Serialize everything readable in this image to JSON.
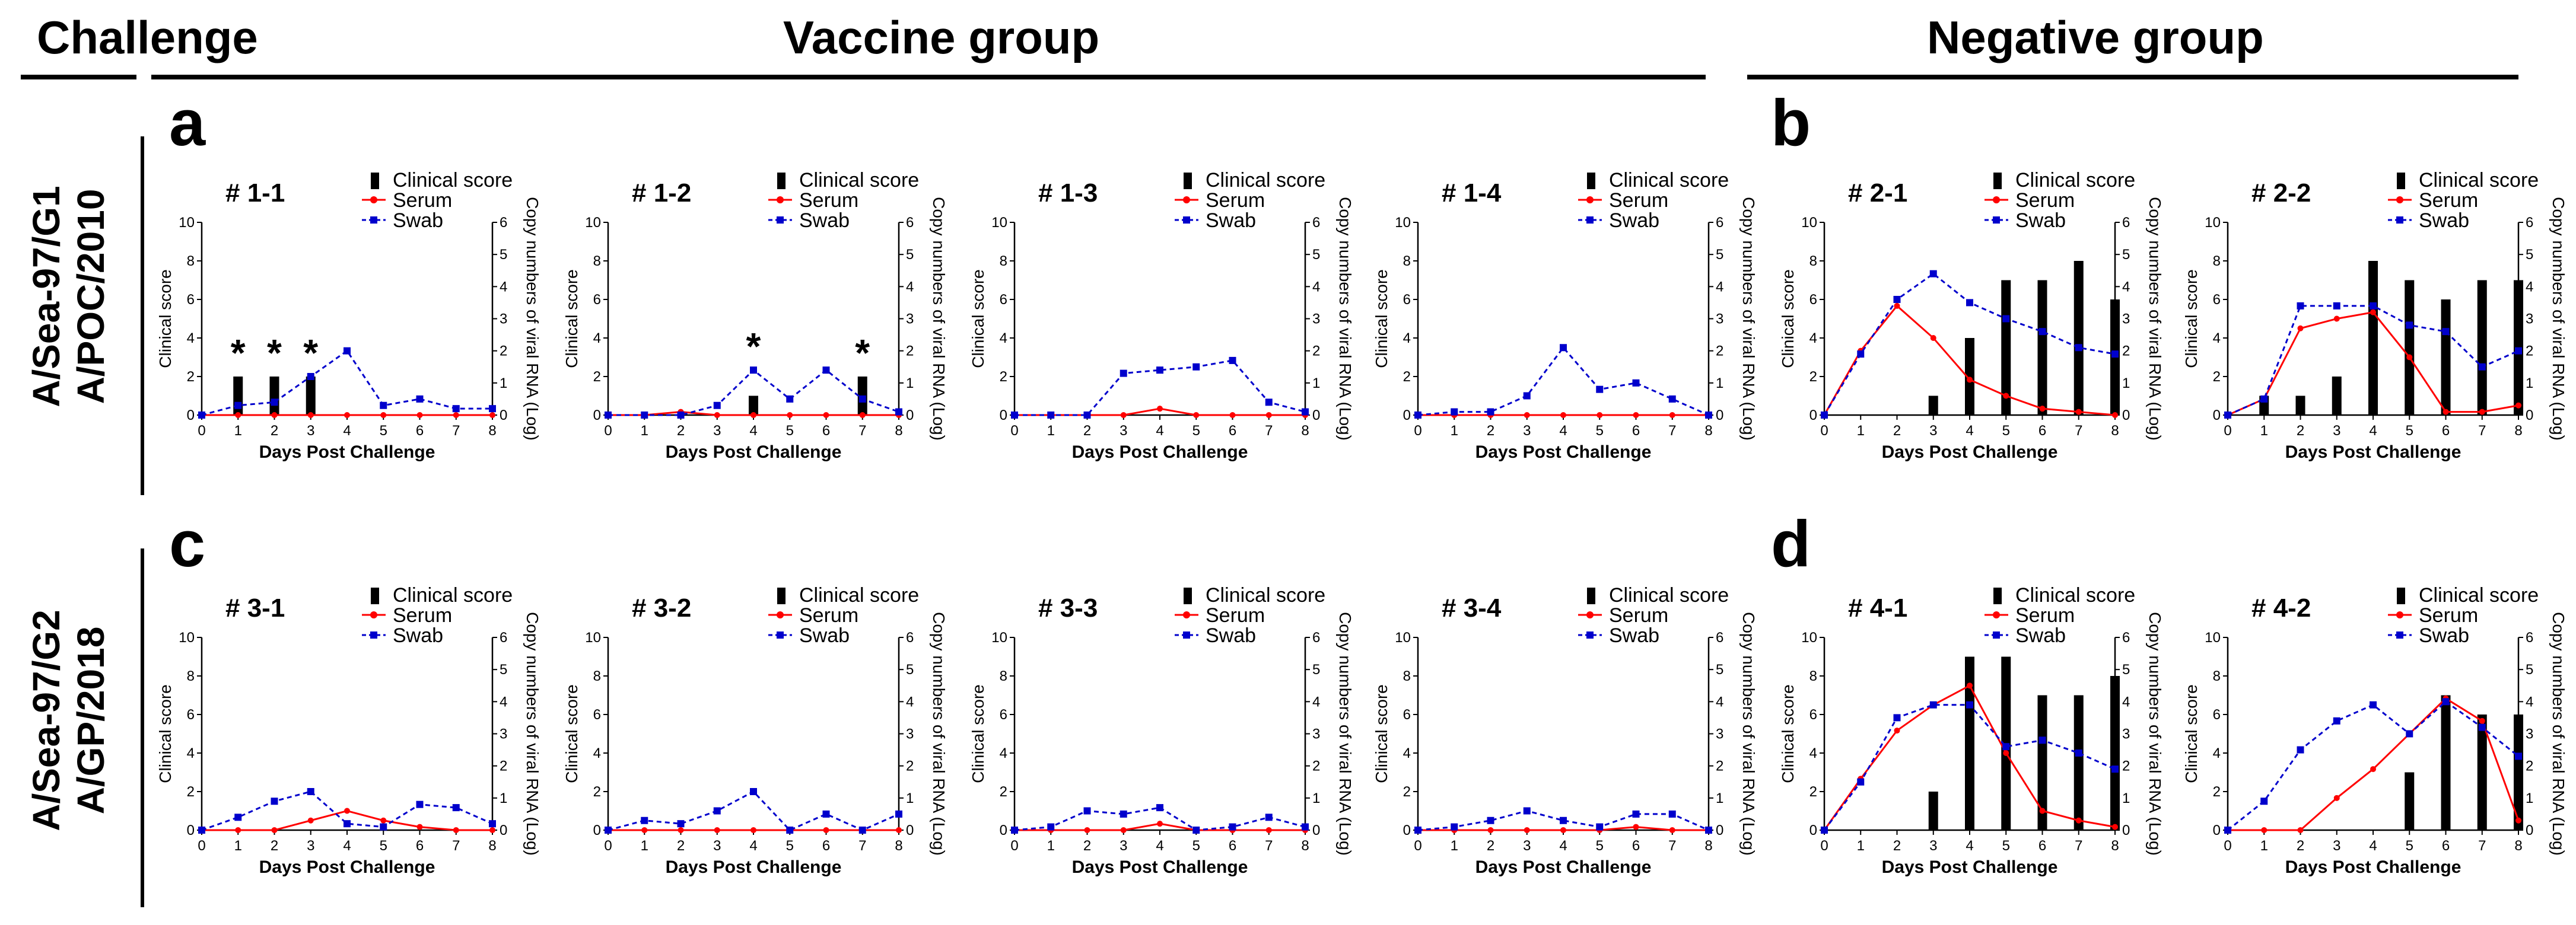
{
  "headers": {
    "challenge": "Challenge",
    "vaccine_group": "Vaccine group",
    "negative_group": "Negative group"
  },
  "row_labels": [
    [
      "A/Sea-97/G1",
      "A/POC/2010"
    ],
    [
      "A/Sea-97/G2",
      "A/GP/2018"
    ]
  ],
  "panel_labels": [
    "a",
    "b",
    "c",
    "d"
  ],
  "legend": {
    "clinical": "Clinical score",
    "serum": "Serum",
    "swab": "Swab"
  },
  "axes": {
    "xlabel": "Days Post Challenge",
    "ylabel_left": "Clinical score",
    "ylabel_right": "Copy numbers of viral RNA (Log)",
    "x_ticks": [
      0,
      1,
      2,
      3,
      4,
      5,
      6,
      7,
      8
    ],
    "left_ylim": [
      0,
      10
    ],
    "right_ylim": [
      0,
      6
    ]
  },
  "colors": {
    "bar": "#000000",
    "serum": "#ff0000",
    "swab": "#0000cc"
  },
  "chart_data": [
    {
      "type": "bar+line",
      "title": "# 1-1",
      "x": [
        0,
        1,
        2,
        3,
        4,
        5,
        6,
        7,
        8
      ],
      "series": [
        {
          "name": "Clinical score",
          "axis": "left",
          "values": [
            0,
            2,
            2,
            2,
            0,
            0,
            0,
            0,
            0
          ]
        },
        {
          "name": "Serum",
          "axis": "right",
          "values": [
            0,
            0,
            0,
            0,
            0,
            0,
            0,
            0,
            0
          ]
        },
        {
          "name": "Swab",
          "axis": "right",
          "values": [
            0,
            0.3,
            0.4,
            1.2,
            2.0,
            0.3,
            0.5,
            0.2,
            0.2
          ]
        }
      ],
      "significance_days": [
        1,
        2,
        3
      ]
    },
    {
      "type": "bar+line",
      "title": "# 1-2",
      "x": [
        0,
        1,
        2,
        3,
        4,
        5,
        6,
        7,
        8
      ],
      "series": [
        {
          "name": "Clinical score",
          "axis": "left",
          "values": [
            0,
            0,
            0,
            0,
            1,
            0,
            0,
            2,
            0
          ]
        },
        {
          "name": "Serum",
          "axis": "right",
          "values": [
            0,
            0,
            0.1,
            0,
            0,
            0,
            0,
            0,
            0
          ]
        },
        {
          "name": "Swab",
          "axis": "right",
          "values": [
            0,
            0,
            0,
            0.3,
            1.4,
            0.5,
            1.4,
            0.5,
            0.1
          ]
        }
      ],
      "significance_days": [
        4,
        7
      ]
    },
    {
      "type": "bar+line",
      "title": "# 1-3",
      "x": [
        0,
        1,
        2,
        3,
        4,
        5,
        6,
        7,
        8
      ],
      "series": [
        {
          "name": "Clinical score",
          "axis": "left",
          "values": [
            0,
            0,
            0,
            0,
            0,
            0,
            0,
            0,
            0
          ]
        },
        {
          "name": "Serum",
          "axis": "right",
          "values": [
            0,
            0,
            0,
            0,
            0.2,
            0,
            0,
            0,
            0
          ]
        },
        {
          "name": "Swab",
          "axis": "right",
          "values": [
            0,
            0,
            0,
            1.3,
            1.4,
            1.5,
            1.7,
            0.4,
            0.1
          ]
        }
      ],
      "significance_days": []
    },
    {
      "type": "bar+line",
      "title": "# 1-4",
      "x": [
        0,
        1,
        2,
        3,
        4,
        5,
        6,
        7,
        8
      ],
      "series": [
        {
          "name": "Clinical score",
          "axis": "left",
          "values": [
            0,
            0,
            0,
            0,
            0,
            0,
            0,
            0,
            0
          ]
        },
        {
          "name": "Serum",
          "axis": "right",
          "values": [
            0,
            0,
            0,
            0,
            0,
            0,
            0,
            0,
            0
          ]
        },
        {
          "name": "Swab",
          "axis": "right",
          "values": [
            0,
            0.1,
            0.1,
            0.6,
            2.1,
            0.8,
            1.0,
            0.5,
            0
          ]
        }
      ],
      "significance_days": []
    },
    {
      "type": "bar+line",
      "title": "# 2-1",
      "x": [
        0,
        1,
        2,
        3,
        4,
        5,
        6,
        7,
        8
      ],
      "series": [
        {
          "name": "Clinical score",
          "axis": "left",
          "values": [
            0,
            0,
            0,
            1,
            4,
            7,
            7,
            8,
            6
          ]
        },
        {
          "name": "Serum",
          "axis": "right",
          "values": [
            0,
            2.0,
            3.4,
            2.4,
            1.1,
            0.6,
            0.2,
            0.1,
            0
          ]
        },
        {
          "name": "Swab",
          "axis": "right",
          "values": [
            0,
            1.9,
            3.6,
            4.4,
            3.5,
            3.0,
            2.6,
            2.1,
            1.9
          ]
        }
      ],
      "significance_days": []
    },
    {
      "type": "bar+line",
      "title": "# 2-2",
      "x": [
        0,
        1,
        2,
        3,
        4,
        5,
        6,
        7,
        8
      ],
      "series": [
        {
          "name": "Clinical score",
          "axis": "left",
          "values": [
            0,
            1,
            1,
            2,
            8,
            7,
            6,
            7,
            7
          ]
        },
        {
          "name": "Serum",
          "axis": "right",
          "values": [
            0,
            0.5,
            2.7,
            3.0,
            3.2,
            1.8,
            0.1,
            0.1,
            0.3
          ]
        },
        {
          "name": "Swab",
          "axis": "right",
          "values": [
            0,
            0.5,
            3.4,
            3.4,
            3.4,
            2.8,
            2.6,
            1.5,
            2.0
          ]
        }
      ],
      "significance_days": []
    },
    {
      "type": "bar+line",
      "title": "# 3-1",
      "x": [
        0,
        1,
        2,
        3,
        4,
        5,
        6,
        7,
        8
      ],
      "series": [
        {
          "name": "Clinical score",
          "axis": "left",
          "values": [
            0,
            0,
            0,
            0,
            0,
            0,
            0,
            0,
            0
          ]
        },
        {
          "name": "Serum",
          "axis": "right",
          "values": [
            0,
            0,
            0,
            0.3,
            0.6,
            0.3,
            0.1,
            0,
            0
          ]
        },
        {
          "name": "Swab",
          "axis": "right",
          "values": [
            0,
            0.4,
            0.9,
            1.2,
            0.2,
            0.1,
            0.8,
            0.7,
            0.2
          ]
        }
      ],
      "significance_days": []
    },
    {
      "type": "bar+line",
      "title": "# 3-2",
      "x": [
        0,
        1,
        2,
        3,
        4,
        5,
        6,
        7,
        8
      ],
      "series": [
        {
          "name": "Clinical score",
          "axis": "left",
          "values": [
            0,
            0,
            0,
            0,
            0,
            0,
            0,
            0,
            0
          ]
        },
        {
          "name": "Serum",
          "axis": "right",
          "values": [
            0,
            0,
            0,
            0,
            0,
            0,
            0,
            0,
            0
          ]
        },
        {
          "name": "Swab",
          "axis": "right",
          "values": [
            0,
            0.3,
            0.2,
            0.6,
            1.2,
            0,
            0.5,
            0,
            0.5
          ]
        }
      ],
      "significance_days": []
    },
    {
      "type": "bar+line",
      "title": "# 3-3",
      "x": [
        0,
        1,
        2,
        3,
        4,
        5,
        6,
        7,
        8
      ],
      "series": [
        {
          "name": "Clinical score",
          "axis": "left",
          "values": [
            0,
            0,
            0,
            0,
            0,
            0,
            0,
            0,
            0
          ]
        },
        {
          "name": "Serum",
          "axis": "right",
          "values": [
            0,
            0,
            0,
            0,
            0.2,
            0,
            0,
            0,
            0
          ]
        },
        {
          "name": "Swab",
          "axis": "right",
          "values": [
            0,
            0.1,
            0.6,
            0.5,
            0.7,
            0,
            0.1,
            0.4,
            0.1
          ]
        }
      ],
      "significance_days": []
    },
    {
      "type": "bar+line",
      "title": "# 3-4",
      "x": [
        0,
        1,
        2,
        3,
        4,
        5,
        6,
        7,
        8
      ],
      "series": [
        {
          "name": "Clinical score",
          "axis": "left",
          "values": [
            0,
            0,
            0,
            0,
            0,
            0,
            0,
            0,
            0
          ]
        },
        {
          "name": "Serum",
          "axis": "right",
          "values": [
            0,
            0,
            0,
            0,
            0,
            0,
            0.1,
            0,
            0
          ]
        },
        {
          "name": "Swab",
          "axis": "right",
          "values": [
            0,
            0.1,
            0.3,
            0.6,
            0.3,
            0.1,
            0.5,
            0.5,
            0
          ]
        }
      ],
      "significance_days": []
    },
    {
      "type": "bar+line",
      "title": "# 4-1",
      "x": [
        0,
        1,
        2,
        3,
        4,
        5,
        6,
        7,
        8
      ],
      "series": [
        {
          "name": "Clinical score",
          "axis": "left",
          "values": [
            0,
            0,
            0,
            2,
            9,
            9,
            7,
            7,
            8
          ]
        },
        {
          "name": "Serum",
          "axis": "right",
          "values": [
            0,
            1.6,
            3.1,
            3.9,
            4.5,
            2.4,
            0.6,
            0.3,
            0.1
          ]
        },
        {
          "name": "Swab",
          "axis": "right",
          "values": [
            0,
            1.5,
            3.5,
            3.9,
            3.9,
            2.6,
            2.8,
            2.4,
            1.9
          ]
        }
      ],
      "significance_days": []
    },
    {
      "type": "bar+line",
      "title": "# 4-2",
      "x": [
        0,
        1,
        2,
        3,
        4,
        5,
        6,
        7,
        8
      ],
      "series": [
        {
          "name": "Clinical score",
          "axis": "left",
          "values": [
            0,
            0,
            0,
            0,
            0,
            3,
            7,
            6,
            6
          ]
        },
        {
          "name": "Serum",
          "axis": "right",
          "values": [
            0,
            0,
            0,
            1.0,
            1.9,
            3.0,
            4.1,
            3.4,
            0.3
          ]
        },
        {
          "name": "Swab",
          "axis": "right",
          "values": [
            0,
            0.9,
            2.5,
            3.4,
            3.9,
            3.0,
            4.0,
            3.2,
            2.3
          ]
        }
      ],
      "significance_days": []
    }
  ]
}
